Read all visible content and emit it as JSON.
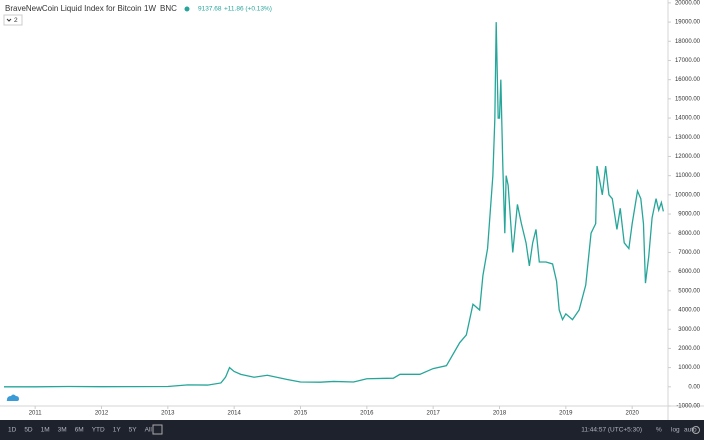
{
  "header": {
    "title": "BraveNewCoin Liquid Index for Bitcoin",
    "interval": "1W",
    "exchange": "BNC",
    "price": "9137.68",
    "change": "+11.86 (+0.13%)",
    "indicators": "2"
  },
  "chart_data": {
    "type": "line",
    "x": [
      2010.53,
      2011.0,
      2011.5,
      2012.0,
      2012.5,
      2013.0,
      2013.3,
      2013.6,
      2013.8,
      2013.87,
      2013.93,
      2014.0,
      2014.1,
      2014.3,
      2014.5,
      2014.8,
      2015.0,
      2015.3,
      2015.5,
      2015.8,
      2016.0,
      2016.4,
      2016.5,
      2016.8,
      2017.0,
      2017.2,
      2017.4,
      2017.5,
      2017.6,
      2017.7,
      2017.75,
      2017.82,
      2017.9,
      2017.93,
      2017.95,
      2017.98,
      2018.0,
      2018.02,
      2018.05,
      2018.08,
      2018.1,
      2018.13,
      2018.17,
      2018.2,
      2018.27,
      2018.33,
      2018.4,
      2018.45,
      2018.5,
      2018.55,
      2018.6,
      2018.7,
      2018.8,
      2018.86,
      2018.9,
      2018.95,
      2019.0,
      2019.1,
      2019.2,
      2019.3,
      2019.38,
      2019.45,
      2019.47,
      2019.55,
      2019.6,
      2019.65,
      2019.7,
      2019.77,
      2019.82,
      2019.88,
      2019.95,
      2020.0,
      2020.08,
      2020.13,
      2020.17,
      2020.2,
      2020.25,
      2020.3,
      2020.36,
      2020.4,
      2020.44,
      2020.47
    ],
    "series": [
      {
        "color": "#26a69a",
        "values": [
          0.07,
          0.3,
          15,
          6,
          8,
          15,
          100,
          90,
          200,
          500,
          1000,
          800,
          650,
          500,
          600,
          380,
          250,
          240,
          280,
          250,
          420,
          450,
          650,
          650,
          950,
          1100,
          2300,
          2700,
          4300,
          4000,
          5800,
          7200,
          11000,
          14000,
          19000,
          14000,
          14000,
          16000,
          11500,
          8000,
          11000,
          10500,
          8500,
          7000,
          9500,
          8500,
          7500,
          6300,
          7500,
          8200,
          6500,
          6500,
          6400,
          5500,
          4000,
          3500,
          3800,
          3500,
          4000,
          5300,
          8000,
          8500,
          11500,
          10000,
          11500,
          10000,
          9800,
          8200,
          9300,
          7500,
          7200,
          8500,
          10200,
          9800,
          8500,
          5400,
          6800,
          8800,
          9800,
          9200,
          9600,
          9137.68
        ]
      }
    ],
    "xlim": [
      2010.47,
      2020.54
    ],
    "xticks": [
      2011,
      2012,
      2013,
      2014,
      2015,
      2016,
      2017,
      2018,
      2019,
      2020
    ],
    "ylim": [
      -1000,
      20150
    ],
    "yticks": [
      {
        "value": -1000,
        "label": "-1000.00"
      },
      {
        "value": 0,
        "label": "0.00"
      },
      {
        "value": 1000,
        "label": "1000.00"
      },
      {
        "value": 2000,
        "label": "2000.00"
      },
      {
        "value": 3000,
        "label": "3000.00"
      },
      {
        "value": 4000,
        "label": "4000.00"
      },
      {
        "value": 5000,
        "label": "5000.00"
      },
      {
        "value": 6000,
        "label": "6000.00"
      },
      {
        "value": 7000,
        "label": "7000.00"
      },
      {
        "value": 8000,
        "label": "8000.00"
      },
      {
        "value": 9000,
        "label": "9000.00"
      },
      {
        "value": 10000,
        "label": "10000.00"
      },
      {
        "value": 11000,
        "label": "11000.00"
      },
      {
        "value": 12000,
        "label": "12000.00"
      },
      {
        "value": 13000,
        "label": "13000.00"
      },
      {
        "value": 14000,
        "label": "14000.00"
      },
      {
        "value": 15000,
        "label": "15000.00"
      },
      {
        "value": 16000,
        "label": "16000.00"
      },
      {
        "value": 17000,
        "label": "17000.00"
      },
      {
        "value": 18000,
        "label": "18000.00"
      },
      {
        "value": 19000,
        "label": "19000.00"
      },
      {
        "value": 20000,
        "label": "20000.00"
      }
    ]
  },
  "toolbar": {
    "ranges": [
      "1D",
      "5D",
      "1M",
      "3M",
      "6M",
      "YTD",
      "1Y",
      "5Y",
      "All"
    ],
    "clock": "11:44:57 (UTC+5:30)",
    "options": [
      "%",
      "log",
      "auto"
    ]
  }
}
